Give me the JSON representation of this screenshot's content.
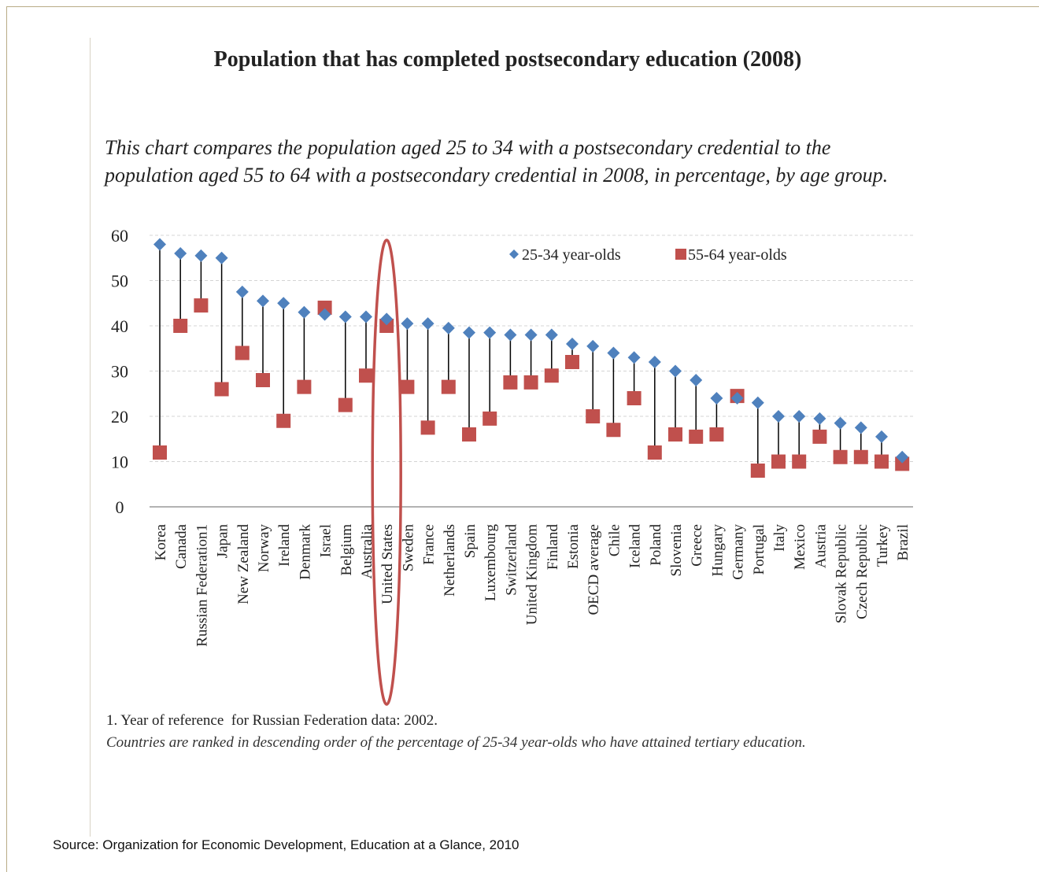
{
  "colors": {
    "series_25_34": "#4f81bd",
    "series_55_64": "#c0504d",
    "highlight": "#c0504d",
    "frame": "#b9ab86"
  },
  "title": "Population that has completed postsecondary education (2008)",
  "subtitle": "This chart compares the population aged 25 to 34 with a postsecondary credential to the population aged 55 to 64 with a postsecondary credential in 2008, in percentage, by age group.",
  "footnote": "1. Year of reference  for Russian Federation data: 2002.",
  "note": "Countries are ranked in descending order of the percentage of 25-34 year-olds who have attained tertiary education.",
  "source": "Source: Organization for Economic Development, Education at a Glance, 2010",
  "chart_data": {
    "type": "scatter",
    "ylim": [
      0,
      60
    ],
    "yticks": [
      "0",
      "10",
      "20",
      "30",
      "40",
      "50",
      "60"
    ],
    "grid": true,
    "legend_position": "top-right",
    "highlighted_category": "United States",
    "categories": [
      "Korea",
      "Canada",
      "Russian Federation1",
      "Japan",
      "New Zealand",
      "Norway",
      "Ireland",
      "Denmark",
      "Israel",
      "Belgium",
      "Australia",
      "United States",
      "Sweden",
      "France",
      "Netherlands",
      "Spain",
      "Luxembourg",
      "Switzerland",
      "United Kingdom",
      "Finland",
      "Estonia",
      "OECD average",
      "Chile",
      "Iceland",
      "Poland",
      "Slovenia",
      "Greece",
      "Hungary",
      "Germany",
      "Portugal",
      "Italy",
      "Mexico",
      "Austria",
      "Slovak Republic",
      "Czech Republic",
      "Turkey",
      "Brazil"
    ],
    "series": [
      {
        "name": "25-34 year-olds",
        "marker": "diamond",
        "values": [
          58,
          56,
          55.5,
          55,
          47.5,
          45.5,
          45,
          43,
          42.5,
          42,
          42,
          41.5,
          40.5,
          40.5,
          39.5,
          38.5,
          38.5,
          38,
          38,
          38,
          36,
          35.5,
          34,
          33,
          32,
          30,
          28,
          24,
          24,
          23,
          20,
          20,
          19.5,
          18.5,
          17.5,
          15.5,
          11
        ]
      },
      {
        "name": "55-64 year-olds",
        "marker": "square",
        "values": [
          12,
          40,
          44.5,
          26,
          34,
          28,
          19,
          26.5,
          44,
          22.5,
          29,
          40,
          26.5,
          17.5,
          26.5,
          16,
          19.5,
          27.5,
          27.5,
          29,
          32,
          20,
          17,
          24,
          12,
          16,
          15.5,
          16,
          24.5,
          8,
          10,
          10,
          15.5,
          11,
          11,
          10,
          9.5
        ]
      }
    ]
  }
}
